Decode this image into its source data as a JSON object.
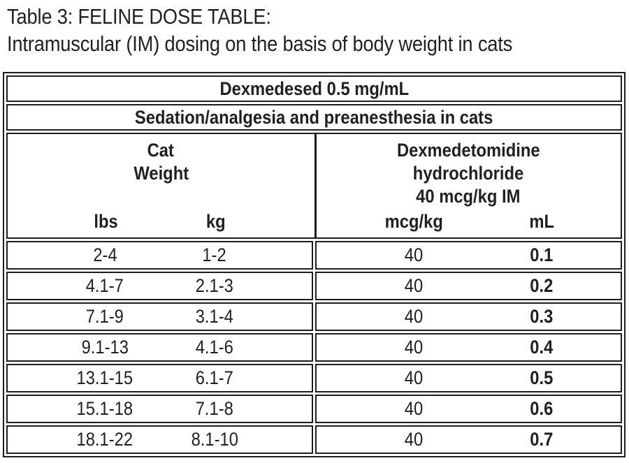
{
  "title": {
    "line1": "Table 3: FELINE DOSE TABLE:",
    "line2": "Intramuscular (IM) dosing on the basis of body weight in cats"
  },
  "table": {
    "product_header": "Dexmedesed 0.5 mg/mL",
    "indication_header": "Sedation/analgesia and preanesthesia in cats",
    "column_groups": {
      "left": {
        "title_line1": "Cat",
        "title_line2": "Weight",
        "col1": "lbs",
        "col2": "kg"
      },
      "right": {
        "title_line1": "Dexmedetomidine",
        "title_line2": "hydrochloride",
        "title_line3": "40 mcg/kg IM",
        "col1": "mcg/kg",
        "col2": "mL"
      }
    },
    "rows": [
      {
        "lbs": "2-4",
        "kg": "1-2",
        "mcg_kg": "40",
        "ml": "0.1"
      },
      {
        "lbs": "4.1-7",
        "kg": "2.1-3",
        "mcg_kg": "40",
        "ml": "0.2"
      },
      {
        "lbs": "7.1-9",
        "kg": "3.1-4",
        "mcg_kg": "40",
        "ml": "0.3"
      },
      {
        "lbs": "9.1-13",
        "kg": "4.1-6",
        "mcg_kg": "40",
        "ml": "0.4"
      },
      {
        "lbs": "13.1-15",
        "kg": "6.1-7",
        "mcg_kg": "40",
        "ml": "0.5"
      },
      {
        "lbs": "15.1-18",
        "kg": "7.1-8",
        "mcg_kg": "40",
        "ml": "0.6"
      },
      {
        "lbs": "18.1-22",
        "kg": "8.1-10",
        "mcg_kg": "40",
        "ml": "0.7"
      }
    ]
  },
  "colors": {
    "text": "#231f20",
    "border": "#1e1e1e",
    "background": "#ffffff"
  }
}
